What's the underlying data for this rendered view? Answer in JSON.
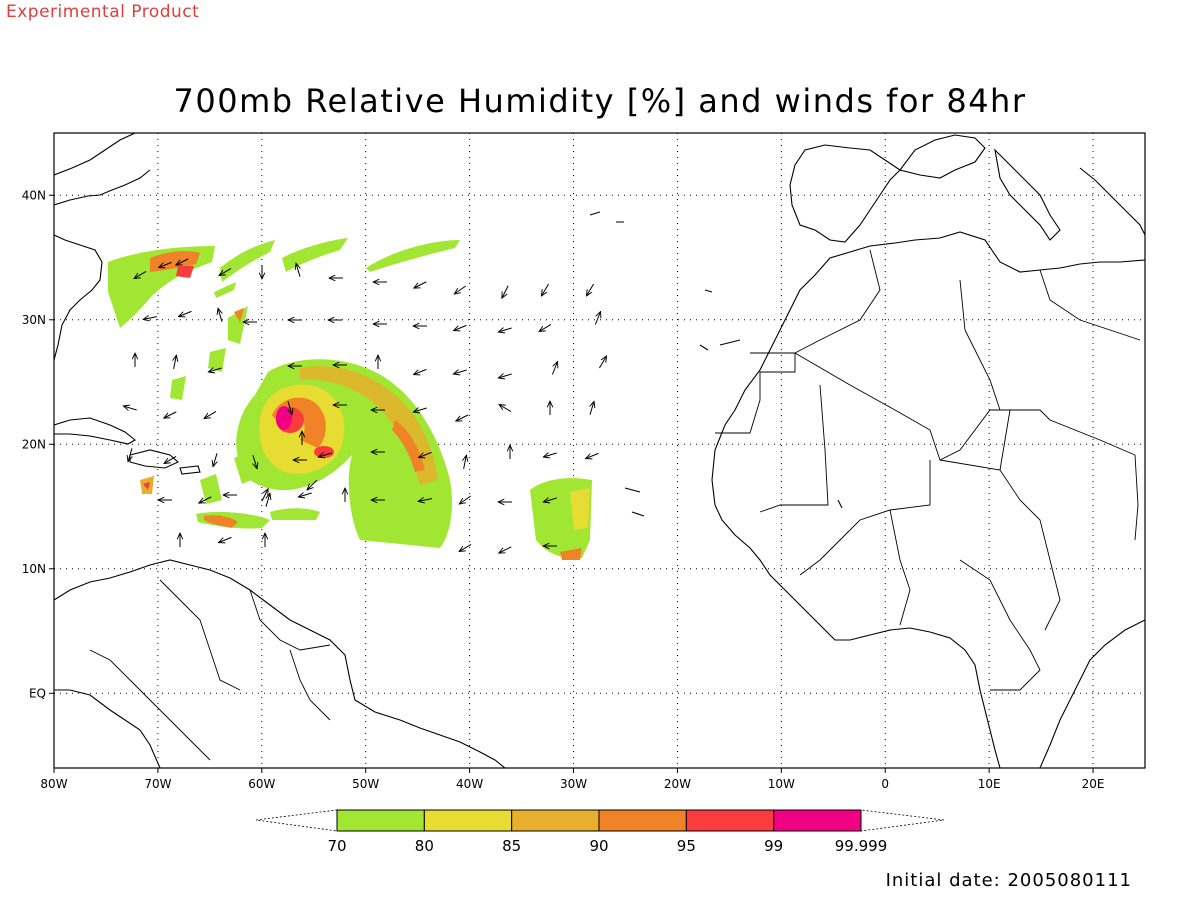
{
  "header": {
    "stamp": "Experimental Product",
    "title": "700mb Relative Humidity [%] and winds for 84hr"
  },
  "footer": {
    "initial_date": "Initial date: 2005080111"
  },
  "map": {
    "lon_range": [
      -80,
      25
    ],
    "lat_range": [
      -6,
      45
    ],
    "lon_ticks": [
      {
        "value": -80,
        "label": "80W"
      },
      {
        "value": -70,
        "label": "70W"
      },
      {
        "value": -60,
        "label": "60W"
      },
      {
        "value": -50,
        "label": "50W"
      },
      {
        "value": -40,
        "label": "40W"
      },
      {
        "value": -30,
        "label": "30W"
      },
      {
        "value": -20,
        "label": "20W"
      },
      {
        "value": -10,
        "label": "10W"
      },
      {
        "value": 0,
        "label": "0"
      },
      {
        "value": 10,
        "label": "10E"
      },
      {
        "value": 20,
        "label": "20E"
      }
    ],
    "lat_ticks": [
      {
        "value": 40,
        "label": "40N"
      },
      {
        "value": 30,
        "label": "30N"
      },
      {
        "value": 20,
        "label": "20N"
      },
      {
        "value": 10,
        "label": "10N"
      },
      {
        "value": 0,
        "label": "EQ"
      }
    ],
    "grid": "dotted"
  },
  "colorbar": {
    "labels": [
      "70",
      "80",
      "85",
      "90",
      "95",
      "99",
      "99.999"
    ],
    "colors": [
      "#a0e632",
      "#e6dc32",
      "#e6af2d",
      "#f08228",
      "#fa3c3c",
      "#f00082"
    ]
  }
}
